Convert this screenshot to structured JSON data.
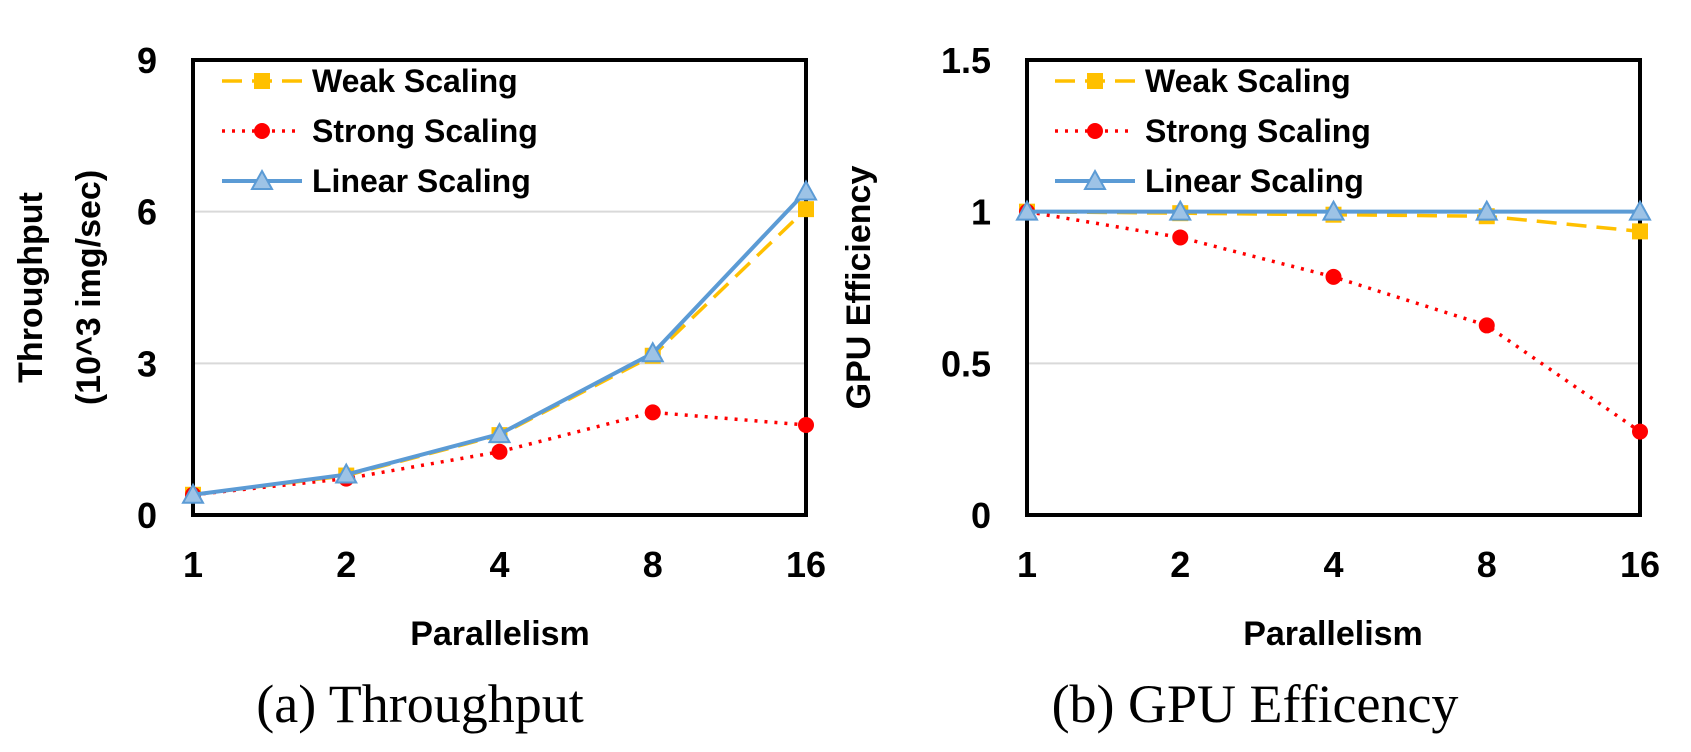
{
  "colors": {
    "weak": "#ffc000",
    "strong": "#ff0000",
    "linear": "#5b9bd5",
    "linear_marker_fill": "#9dc3e6",
    "gridline": "#d9d9d9",
    "frame": "#000000"
  },
  "chart_data": [
    {
      "type": "line",
      "caption": "(a) Throughput",
      "xlabel": "Parallelism",
      "ylabel_line1": "Throughput",
      "ylabel_line2": "(10^3 img/sec)",
      "categories": [
        "1",
        "2",
        "4",
        "8",
        "16"
      ],
      "ylim": [
        0,
        9
      ],
      "yticks": [
        "0",
        "3",
        "6",
        "9"
      ],
      "grid": true,
      "legend_position": "top-left",
      "series": [
        {
          "key": "weak",
          "name": "Weak Scaling",
          "marker": "square",
          "line": "dashed",
          "values": [
            0.4,
            0.78,
            1.58,
            3.15,
            6.05
          ]
        },
        {
          "key": "strong",
          "name": "Strong Scaling",
          "marker": "circle",
          "line": "dotted",
          "values": [
            0.4,
            0.72,
            1.25,
            2.03,
            1.78
          ]
        },
        {
          "key": "linear",
          "name": "Linear Scaling",
          "marker": "triangle",
          "line": "solid",
          "values": [
            0.4,
            0.8,
            1.6,
            3.2,
            6.4
          ]
        }
      ]
    },
    {
      "type": "line",
      "caption": "(b) GPU Efficency",
      "xlabel": "Parallelism",
      "ylabel_line1": "GPU Efficiency",
      "ylabel_line2": "",
      "categories": [
        "1",
        "2",
        "4",
        "8",
        "16"
      ],
      "ylim": [
        0,
        1.5
      ],
      "yticks": [
        "0",
        "0.5",
        "1",
        "1.5"
      ],
      "grid": true,
      "legend_position": "top-left",
      "series": [
        {
          "key": "weak",
          "name": "Weak Scaling",
          "marker": "square",
          "line": "dashed",
          "values": [
            1.0,
            0.995,
            0.99,
            0.985,
            0.935
          ]
        },
        {
          "key": "strong",
          "name": "Strong Scaling",
          "marker": "circle",
          "line": "dotted",
          "values": [
            1.0,
            0.915,
            0.785,
            0.625,
            0.275
          ]
        },
        {
          "key": "linear",
          "name": "Linear Scaling",
          "marker": "triangle",
          "line": "solid",
          "values": [
            1.0,
            1.0,
            1.0,
            1.0,
            1.0
          ]
        }
      ]
    }
  ]
}
